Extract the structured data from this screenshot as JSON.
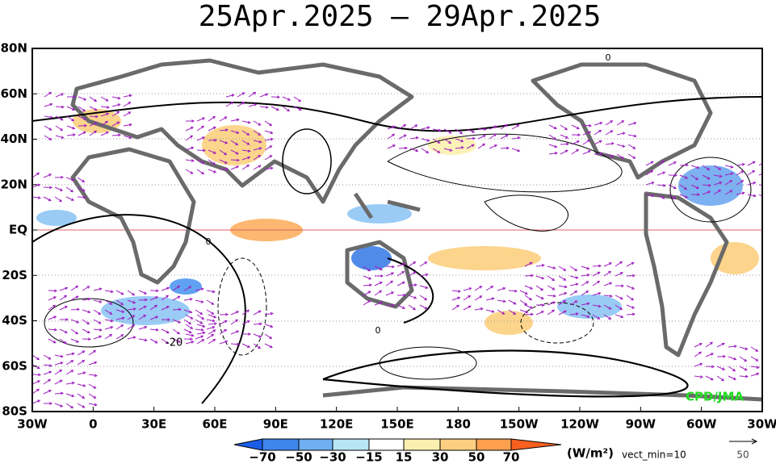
{
  "header": {
    "title": "25Apr.2025 – 29Apr.2025"
  },
  "map": {
    "lat_labels": [
      "80N",
      "60N",
      "40N",
      "20N",
      "EQ",
      "20S",
      "40S",
      "60S",
      "80S"
    ],
    "lon_labels": [
      "30W",
      "0",
      "30E",
      "60E",
      "90E",
      "120E",
      "150E",
      "180",
      "150W",
      "120W",
      "90W",
      "60W",
      "30W"
    ],
    "contour_labels": [
      "0",
      "-20"
    ],
    "credit": "CPD/JMA"
  },
  "legend": {
    "ticks": [
      "−70",
      "−50",
      "−30",
      "−15",
      "15",
      "30",
      "50",
      "70"
    ],
    "unit": "(W/m²)",
    "vect_min": "vect_min=10",
    "ref_vector": "50"
  }
}
